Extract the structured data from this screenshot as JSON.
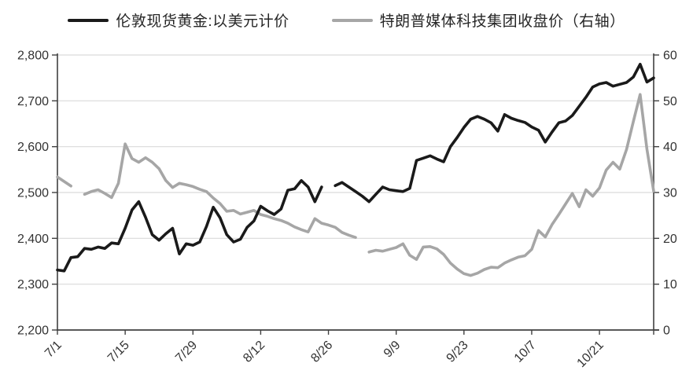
{
  "legend": {
    "items": [
      {
        "label": "伦敦现货黄金:以美元计价",
        "color": "#1a1a1a"
      },
      {
        "label": "特朗普媒体科技集团收盘价（右轴）",
        "color": "#a6a6a6"
      }
    ]
  },
  "colors": {
    "gold_line": "#1a1a1a",
    "djt_line": "#a6a6a6",
    "gridline": "#d9d9d9",
    "axis": "#404040",
    "tick_label": "#333333",
    "background": "#ffffff"
  },
  "left_axis": {
    "tick_labels": [
      "2,800",
      "2,700",
      "2,600",
      "2,500",
      "2,400",
      "2,300",
      "2,200"
    ],
    "tick_values": [
      2800,
      2700,
      2600,
      2500,
      2400,
      2300,
      2200
    ]
  },
  "right_axis": {
    "tick_labels": [
      "60",
      "50",
      "40",
      "30",
      "20",
      "10",
      "0"
    ],
    "tick_values": [
      60,
      50,
      40,
      30,
      20,
      10,
      0
    ]
  },
  "chart_data": {
    "type": "line",
    "title": "",
    "xlabel": "",
    "ylabel_left": "",
    "ylabel_right": "",
    "grid": true,
    "legend_position": "top",
    "left_ylim": [
      2200,
      2800
    ],
    "right_ylim": [
      0,
      60
    ],
    "x_tick_labels": [
      "7/1",
      "7/15",
      "7/29",
      "8/12",
      "8/26",
      "9/9",
      "9/23",
      "10/7",
      "10/21"
    ],
    "x": [
      "7/1",
      "7/2",
      "7/3",
      "7/4",
      "7/5",
      "7/8",
      "7/9",
      "7/10",
      "7/11",
      "7/12",
      "7/15",
      "7/16",
      "7/17",
      "7/18",
      "7/19",
      "7/22",
      "7/23",
      "7/24",
      "7/25",
      "7/26",
      "7/29",
      "7/30",
      "7/31",
      "8/1",
      "8/2",
      "8/5",
      "8/6",
      "8/7",
      "8/8",
      "8/9",
      "8/12",
      "8/13",
      "8/14",
      "8/15",
      "8/16",
      "8/19",
      "8/20",
      "8/21",
      "8/22",
      "8/23",
      "8/26",
      "8/27",
      "8/28",
      "8/29",
      "8/30",
      "9/2",
      "9/3",
      "9/4",
      "9/5",
      "9/6",
      "9/9",
      "9/10",
      "9/11",
      "9/12",
      "9/13",
      "9/16",
      "9/17",
      "9/18",
      "9/19",
      "9/20",
      "9/23",
      "9/24",
      "9/25",
      "9/26",
      "9/27",
      "9/30",
      "10/1",
      "10/2",
      "10/3",
      "10/4",
      "10/7",
      "10/8",
      "10/9",
      "10/10",
      "10/11",
      "10/14",
      "10/15",
      "10/16",
      "10/17",
      "10/18",
      "10/21",
      "10/22",
      "10/23",
      "10/24",
      "10/25",
      "10/28",
      "10/29",
      "10/30",
      "10/31"
    ],
    "series": [
      {
        "name": "伦敦现货黄金:以美元计价",
        "axis": "left",
        "color": "#1a1a1a",
        "values": [
          2331,
          2329,
          2358,
          2360,
          2378,
          2376,
          2381,
          2378,
          2390,
          2388,
          2422,
          2462,
          2480,
          2446,
          2408,
          2396,
          2410,
          2422,
          2366,
          2388,
          2385,
          2392,
          2426,
          2468,
          2445,
          2408,
          2392,
          2398,
          2424,
          2438,
          2470,
          2460,
          2452,
          2464,
          2505,
          2508,
          2526,
          2512,
          2480,
          2512,
          null,
          2515,
          2522,
          2512,
          2502,
          2492,
          2480,
          2496,
          2512,
          2506,
          2504,
          2502,
          2509,
          2570,
          2575,
          2580,
          2573,
          2567,
          2600,
          2620,
          2642,
          2660,
          2666,
          2660,
          2652,
          2634,
          2670,
          2662,
          2657,
          2653,
          2643,
          2636,
          2610,
          2632,
          2652,
          2656,
          2668,
          2688,
          2708,
          2730,
          2737,
          2740,
          2732,
          2736,
          2740,
          2752,
          2780,
          2741,
          2750
        ]
      },
      {
        "name": "特朗普媒体科技集团收盘价（右轴）",
        "axis": "right",
        "color": "#a6a6a6",
        "values": [
          33.4,
          32.4,
          31.4,
          null,
          29.6,
          30.2,
          30.6,
          29.8,
          28.9,
          32.0,
          40.6,
          37.4,
          36.6,
          37.6,
          36.6,
          35.2,
          32.6,
          31.1,
          32.0,
          31.7,
          31.3,
          30.7,
          30.2,
          28.8,
          27.6,
          25.9,
          26.1,
          25.3,
          25.7,
          26.1,
          25.2,
          24.8,
          24.3,
          23.9,
          23.3,
          22.5,
          21.9,
          21.4,
          24.3,
          23.3,
          22.9,
          22.4,
          21.3,
          20.7,
          20.2,
          null,
          17.0,
          17.4,
          17.2,
          17.6,
          18.0,
          18.8,
          16.3,
          15.4,
          18.1,
          18.2,
          17.7,
          16.5,
          14.6,
          13.3,
          12.3,
          11.9,
          12.4,
          13.2,
          13.7,
          13.6,
          14.6,
          15.3,
          15.9,
          16.2,
          17.6,
          21.7,
          20.3,
          23.0,
          25.2,
          27.5,
          29.8,
          26.9,
          30.6,
          29.2,
          31.0,
          34.9,
          36.6,
          35.1,
          39.4,
          45.5,
          51.4,
          39.5,
          30.3
        ]
      }
    ]
  }
}
